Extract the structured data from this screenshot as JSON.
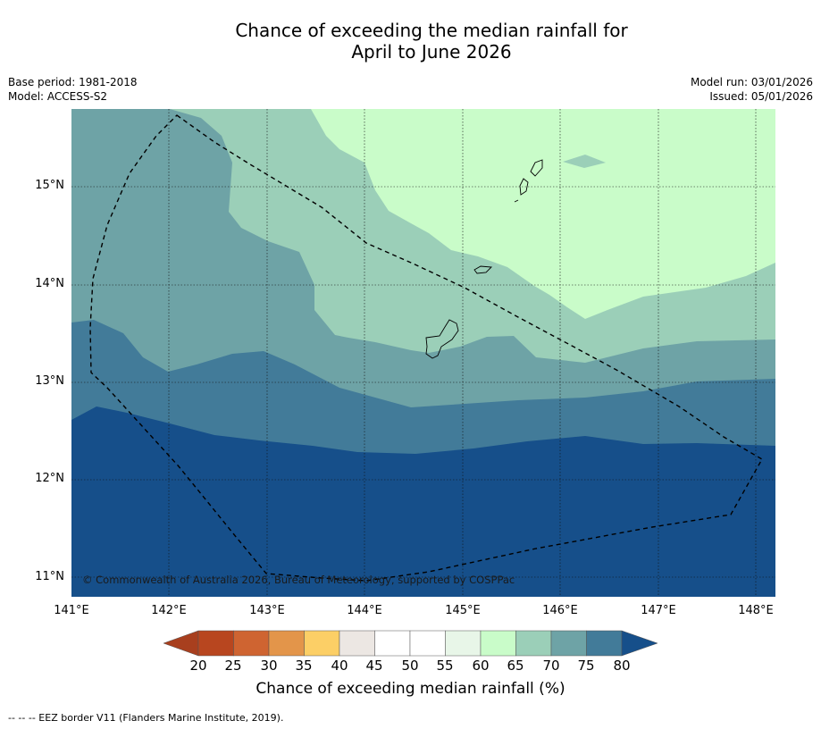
{
  "title_line1": "Chance of exceeding the median rainfall for",
  "title_line2": "April to June 2026",
  "meta_left": {
    "base_period": "Base period: 1981-2018",
    "model": "Model: ACCESS-S2"
  },
  "meta_right": {
    "model_run": "Model run: 03/01/2026",
    "issued": "Issued: 05/01/2026"
  },
  "lat_labels": [
    "15°N",
    "14°N",
    "13°N",
    "12°N",
    "11°N"
  ],
  "lon_labels": [
    "141°E",
    "142°E",
    "143°E",
    "144°E",
    "145°E",
    "146°E",
    "147°E",
    "148°E"
  ],
  "copyright": "© Commonwealth of Australia 2026, Bureau of Meteorology, supported by COSPPac",
  "colorbar": {
    "labels": [
      "20",
      "25",
      "30",
      "35",
      "40",
      "45",
      "50",
      "55",
      "60",
      "65",
      "70",
      "75",
      "80"
    ],
    "colors": [
      "#a83f1e",
      "#b8461f",
      "#cf6431",
      "#e3954a",
      "#fccf66",
      "#ece7e3",
      "#ffffff",
      "#ffffff",
      "#e8f6e8",
      "#c9fcc9",
      "#9bcfb8",
      "#6ea3a6",
      "#427b99",
      "#164f8a"
    ],
    "title": "Chance of exceeding median rainfall (%)"
  },
  "footnote": "--  --  -- EEZ border V11 (Flanders Marine Institute, 2019)."
}
